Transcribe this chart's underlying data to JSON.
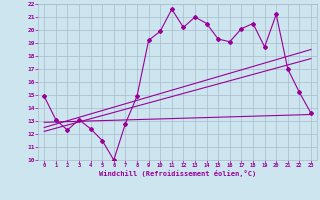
{
  "xlabel": "Windchill (Refroidissement éolien,°C)",
  "bg_color": "#cce5ee",
  "grid_color": "#aabbcc",
  "line_color": "#990099",
  "xlim": [
    -0.5,
    23.5
  ],
  "ylim": [
    10,
    22
  ],
  "xticks": [
    0,
    1,
    2,
    3,
    4,
    5,
    6,
    7,
    8,
    9,
    10,
    11,
    12,
    13,
    14,
    15,
    16,
    17,
    18,
    19,
    20,
    21,
    22,
    23
  ],
  "yticks": [
    10,
    11,
    12,
    13,
    14,
    15,
    16,
    17,
    18,
    19,
    20,
    21,
    22
  ],
  "series1_x": [
    0,
    1,
    2,
    3,
    4,
    5,
    6,
    7,
    8,
    9,
    10,
    11,
    12,
    13,
    14,
    15,
    16,
    17,
    18,
    19,
    20,
    21,
    22,
    23
  ],
  "series1_y": [
    14.9,
    13.1,
    12.3,
    13.1,
    12.4,
    11.5,
    10.0,
    12.8,
    14.9,
    19.2,
    19.9,
    21.6,
    20.2,
    21.0,
    20.5,
    19.3,
    19.1,
    20.1,
    20.5,
    18.7,
    21.2,
    17.0,
    15.2,
    13.6
  ],
  "line1_x": [
    0,
    23
  ],
  "line1_y": [
    12.5,
    18.5
  ],
  "line2_x": [
    0,
    23
  ],
  "line2_y": [
    12.2,
    17.8
  ],
  "line3_x": [
    0,
    23
  ],
  "line3_y": [
    12.9,
    13.5
  ]
}
